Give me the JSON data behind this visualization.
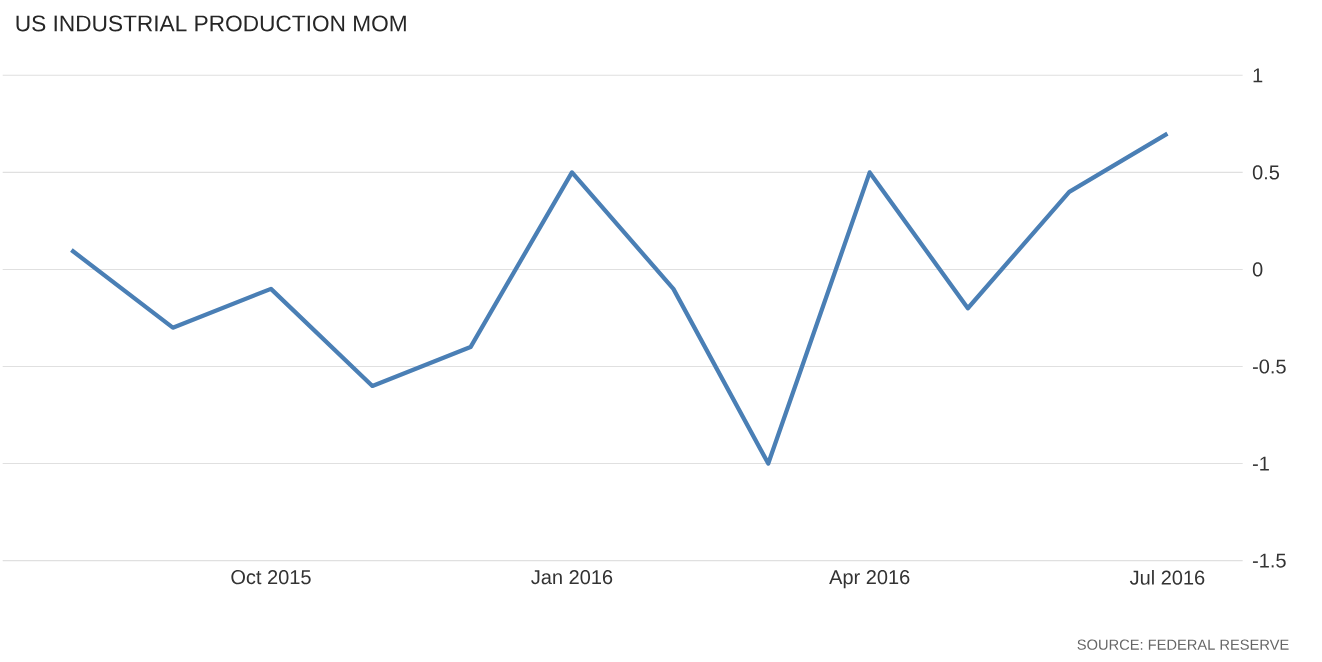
{
  "chart_data": {
    "type": "line",
    "title": "US INDUSTRIAL PRODUCTION MOM",
    "x": [
      "2015-08",
      "2015-09",
      "2015-10",
      "2015-11",
      "2015-12",
      "2016-01",
      "2016-02",
      "2016-03",
      "2016-04",
      "2016-05",
      "2016-06",
      "2016-07"
    ],
    "series": [
      {
        "color": "#4a7fb5",
        "values": [
          0.1,
          -0.3,
          -0.1,
          -0.6,
          -0.4,
          0.5,
          -0.1,
          -1.0,
          0.5,
          -0.2,
          0.4,
          0.7
        ]
      }
    ],
    "xlim": [
      "2015-07-11",
      "2016-07-24"
    ],
    "xticks": [
      {
        "value": "2015-10",
        "label": "Oct 2015"
      },
      {
        "value": "2016-01",
        "label": "Jan 2016"
      },
      {
        "value": "2016-04",
        "label": "Apr 2016"
      },
      {
        "value": "2016-07",
        "label": "Jul 2016"
      }
    ],
    "ylim": [
      -1.5,
      1
    ],
    "yticks": [
      -1.5,
      -1,
      -0.5,
      0,
      0.5,
      1
    ],
    "grid": "y",
    "annotations": [
      "SOURCE: FEDERAL RESERVE"
    ]
  }
}
